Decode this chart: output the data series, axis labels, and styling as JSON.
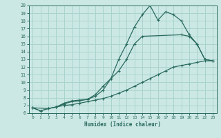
{
  "xlabel": "Humidex (Indice chaleur)",
  "ylabel": "",
  "bg_color": "#cce8e4",
  "line_color": "#2a6b5f",
  "grid_color": "#a8d4ce",
  "xlim": [
    -0.5,
    23.5
  ],
  "ylim": [
    6,
    20
  ],
  "line1_x": [
    0,
    1,
    2,
    3,
    4,
    5,
    6,
    7,
    8,
    9,
    10,
    11,
    12,
    13,
    14,
    15,
    16,
    17,
    18,
    19,
    20,
    21,
    22,
    23
  ],
  "line1_y": [
    6.7,
    6.3,
    6.6,
    6.8,
    7.3,
    7.6,
    7.7,
    7.8,
    8.4,
    9.5,
    10.5,
    13.0,
    15.0,
    17.2,
    18.8,
    20.0,
    18.1,
    19.2,
    18.8,
    18.0,
    16.2,
    15.0,
    13.0,
    12.8
  ],
  "line2_x": [
    0,
    2,
    3,
    4,
    5,
    6,
    7,
    8,
    9,
    10,
    11,
    12,
    13,
    14,
    19,
    20,
    21,
    22,
    23
  ],
  "line2_y": [
    6.7,
    6.6,
    6.8,
    7.2,
    7.5,
    7.6,
    7.8,
    8.2,
    9.0,
    10.5,
    11.5,
    13.0,
    15.0,
    16.0,
    16.2,
    16.0,
    15.0,
    13.0,
    12.8
  ],
  "line3_x": [
    0,
    1,
    2,
    3,
    4,
    5,
    6,
    7,
    8,
    9,
    10,
    11,
    12,
    13,
    14,
    15,
    16,
    17,
    18,
    19,
    20,
    21,
    22,
    23
  ],
  "line3_y": [
    6.7,
    6.3,
    6.6,
    6.8,
    7.0,
    7.1,
    7.3,
    7.5,
    7.7,
    7.9,
    8.2,
    8.6,
    9.0,
    9.5,
    10.0,
    10.5,
    11.0,
    11.5,
    12.0,
    12.2,
    12.4,
    12.6,
    12.8,
    12.8
  ]
}
